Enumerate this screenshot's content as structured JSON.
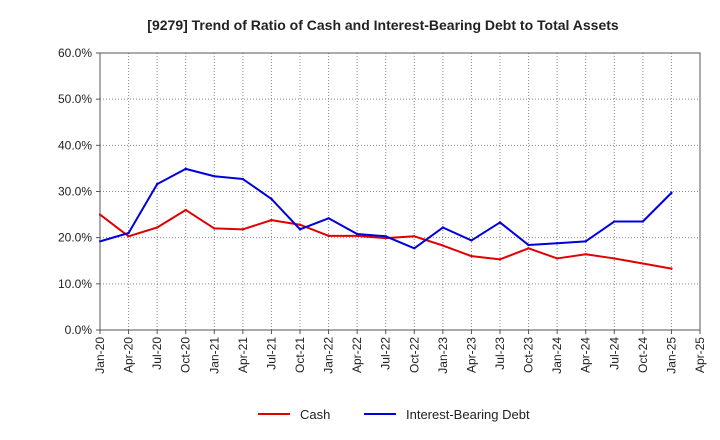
{
  "chart_data": {
    "type": "line",
    "title": "[9279]  Trend of Ratio of Cash and Interest-Bearing Debt to Total Assets",
    "xlabel": "",
    "ylabel": "",
    "ylim": [
      0,
      60
    ],
    "yticks": [
      "0.0%",
      "10.0%",
      "20.0%",
      "30.0%",
      "40.0%",
      "50.0%",
      "60.0%"
    ],
    "categories": [
      "Jan-20",
      "Apr-20",
      "Jul-20",
      "Oct-20",
      "Jan-21",
      "Apr-21",
      "Jul-21",
      "Oct-21",
      "Jan-22",
      "Apr-22",
      "Jul-22",
      "Oct-22",
      "Jan-23",
      "Apr-23",
      "Jul-23",
      "Oct-23",
      "Jan-24",
      "Apr-24",
      "Jul-24",
      "Oct-24",
      "Jan-25",
      "Apr-25"
    ],
    "grid": true,
    "legend_position": "bottom",
    "series": [
      {
        "name": "Cash",
        "color": "#e00000",
        "values": [
          25.0,
          20.3,
          22.2,
          26.0,
          22.0,
          21.8,
          23.8,
          22.8,
          20.4,
          20.4,
          19.9,
          20.3,
          18.3,
          16.0,
          15.3,
          17.7,
          15.5,
          16.4,
          15.5,
          14.4,
          13.3,
          null
        ]
      },
      {
        "name": "Interest-Bearing Debt",
        "color": "#0000dd",
        "values": [
          19.2,
          21.0,
          31.6,
          34.9,
          33.3,
          32.7,
          28.4,
          21.8,
          24.2,
          20.8,
          20.3,
          17.7,
          22.2,
          19.4,
          23.3,
          18.4,
          18.8,
          19.2,
          23.5,
          23.5,
          29.7,
          null
        ]
      }
    ]
  }
}
